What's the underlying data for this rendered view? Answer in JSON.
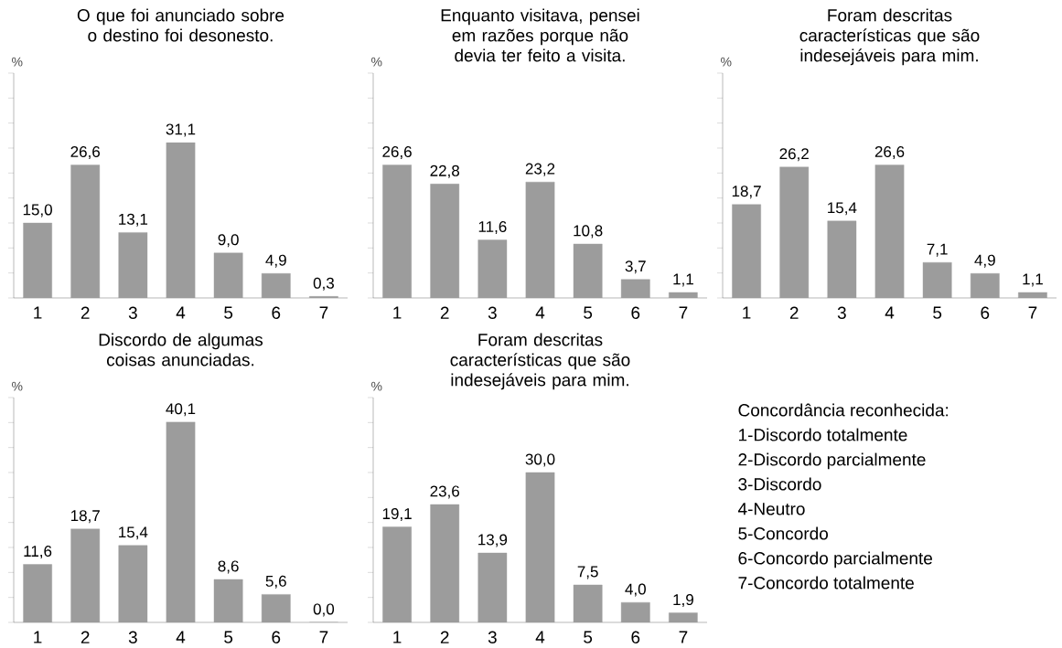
{
  "chart_data": [
    {
      "type": "bar",
      "title": "O que foi anunciado sobre o destino foi desonesto.",
      "ylabel": "%",
      "categories": [
        "1",
        "2",
        "3",
        "4",
        "5",
        "6",
        "7"
      ],
      "values": [
        15.0,
        26.6,
        13.1,
        31.1,
        9.0,
        4.9,
        0.3
      ],
      "value_labels": [
        "15,0",
        "26,6",
        "13,1",
        "31,1",
        "9,0",
        "4,9",
        "0,3"
      ],
      "color": "#9c9c9c",
      "ylim": [
        0,
        45
      ],
      "yticks": [
        {
          "value": 0,
          "label": null
        },
        {
          "value": 5,
          "label": null
        },
        {
          "value": 10,
          "label": null
        },
        {
          "value": 15,
          "label": null
        },
        {
          "value": 20,
          "label": null
        },
        {
          "value": 25,
          "label": null
        },
        {
          "value": 30,
          "label": null
        },
        {
          "value": 35,
          "label": null
        },
        {
          "value": 40,
          "label": null
        },
        {
          "value": 45,
          "label": null
        }
      ],
      "tick_labels": "x"
    },
    {
      "type": "bar",
      "title": "Enquanto visitava, pensei em razões porque não devia ter feito a visita.",
      "ylabel": "%",
      "categories": [
        "1",
        "2",
        "3",
        "4",
        "5",
        "6",
        "7"
      ],
      "values": [
        26.6,
        22.8,
        11.6,
        23.2,
        10.8,
        3.7,
        1.1
      ],
      "value_labels": [
        "26,6",
        "22,8",
        "11,6",
        "23,2",
        "10,8",
        "3,7",
        "1,1"
      ],
      "color": "#9c9c9c",
      "ylim": [
        0,
        45
      ],
      "yticks": [
        {
          "value": 0,
          "label": null
        },
        {
          "value": 5,
          "label": null
        },
        {
          "value": 10,
          "label": null
        },
        {
          "value": 15,
          "label": null
        },
        {
          "value": 20,
          "label": null
        },
        {
          "value": 25,
          "label": null
        },
        {
          "value": 30,
          "label": null
        },
        {
          "value": 35,
          "label": null
        },
        {
          "value": 40,
          "label": null
        },
        {
          "value": 45,
          "label": null
        }
      ],
      "tick_labels": "x"
    },
    {
      "type": "bar",
      "title": "Foram descritas características que são indesejáveis para mim.",
      "ylabel": "%",
      "categories": [
        "1",
        "2",
        "3",
        "4",
        "5",
        "6",
        "7"
      ],
      "values": [
        18.7,
        26.2,
        15.4,
        26.6,
        7.1,
        4.9,
        1.1
      ],
      "value_labels": [
        "18,7",
        "26,2",
        "15,4",
        "26,6",
        "7,1",
        "4,9",
        "1,1"
      ],
      "color": "#9c9c9c",
      "ylim": [
        0,
        45
      ],
      "yticks": [
        {
          "value": 0,
          "label": null
        },
        {
          "value": 5,
          "label": null
        },
        {
          "value": 10,
          "label": null
        },
        {
          "value": 15,
          "label": null
        },
        {
          "value": 20,
          "label": null
        },
        {
          "value": 25,
          "label": null
        },
        {
          "value": 30,
          "label": null
        },
        {
          "value": 35,
          "label": null
        },
        {
          "value": 40,
          "label": null
        },
        {
          "value": 45,
          "label": null
        }
      ],
      "tick_labels": "x"
    },
    {
      "type": "bar",
      "title": "Discordo de algumas coisas anunciadas.",
      "ylabel": "%",
      "categories": [
        "1",
        "2",
        "3",
        "4",
        "5",
        "6",
        "7"
      ],
      "values": [
        11.6,
        18.7,
        15.4,
        40.1,
        8.6,
        5.6,
        0.0
      ],
      "value_labels": [
        "11,6",
        "18,7",
        "15,4",
        "40,1",
        "8,6",
        "5,6",
        "0,0"
      ],
      "color": "#9c9c9c",
      "ylim": [
        0,
        45
      ],
      "yticks": [
        {
          "value": 0,
          "label": null
        },
        {
          "value": 5,
          "label": null
        },
        {
          "value": 10,
          "label": null
        },
        {
          "value": 15,
          "label": null
        },
        {
          "value": 20,
          "label": null
        },
        {
          "value": 25,
          "label": null
        },
        {
          "value": 30,
          "label": null
        },
        {
          "value": 35,
          "label": null
        },
        {
          "value": 40,
          "label": null
        },
        {
          "value": 45,
          "label": null
        }
      ],
      "tick_labels": "x"
    },
    {
      "type": "bar",
      "title": "Foram descritas características que são indesejáveis para mim.",
      "ylabel": "%",
      "categories": [
        "1",
        "2",
        "3",
        "4",
        "5",
        "6",
        "7"
      ],
      "values": [
        19.1,
        23.6,
        13.9,
        30.0,
        7.5,
        4.0,
        1.9
      ],
      "value_labels": [
        "19,1",
        "23,6",
        "13,9",
        "30,0",
        "7,5",
        "4,0",
        "1,9"
      ],
      "color": "#9c9c9c",
      "ylim": [
        0,
        45
      ],
      "yticks": [
        {
          "value": 0,
          "label": null
        },
        {
          "value": 5,
          "label": null
        },
        {
          "value": 10,
          "label": null
        },
        {
          "value": 15,
          "label": null
        },
        {
          "value": 20,
          "label": null
        },
        {
          "value": 25,
          "label": null
        },
        {
          "value": 30,
          "label": null
        },
        {
          "value": 35,
          "label": null
        },
        {
          "value": 40,
          "label": null
        },
        {
          "value": 45,
          "label": null
        }
      ],
      "tick_labels": "x"
    },
    {
      "type": "other",
      "title": "Concordância reconhecida:",
      "annotations": [
        "1-Discordo totalmente",
        "2-Discordo parcialmente",
        "3-Discordo",
        "4-Neutro",
        "5-Concordo",
        "6-Concordo parcialmente",
        "7-Concordo totalmente"
      ]
    }
  ]
}
